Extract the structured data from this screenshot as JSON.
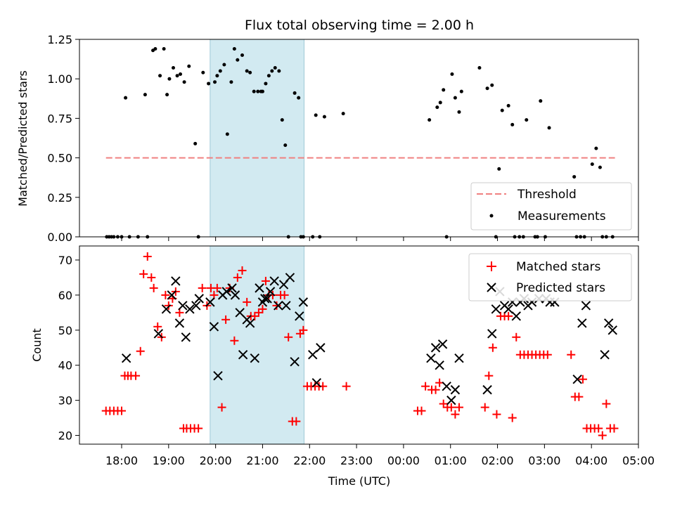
{
  "chart_data": [
    {
      "type": "scatter",
      "title": "Flux total observing time = 2.00 h",
      "ylabel": "Matched/Predicted stars",
      "ylim": [
        0,
        1.25
      ],
      "yticks": [
        "0.00",
        "0.25",
        "0.50",
        "0.75",
        "1.00",
        "1.25"
      ],
      "shaded_span": [
        "19:53",
        "21:53"
      ],
      "threshold": {
        "name": "Threshold",
        "value": 0.5,
        "x": [
          "17:40",
          "04:30"
        ],
        "color": "#f08080"
      },
      "legend": {
        "position": "lower-right",
        "entries": [
          "Threshold",
          "Measurements"
        ]
      },
      "series": [
        {
          "name": "Measurements",
          "color": "#000000",
          "marker": "dot",
          "x": [
            "17:41",
            "17:44",
            "17:47",
            "17:50",
            "17:55",
            "18:00",
            "18:05",
            "18:10",
            "18:21",
            "18:30",
            "18:33",
            "18:40",
            "18:43",
            "18:49",
            "18:54",
            "18:58",
            "19:01",
            "19:06",
            "19:11",
            "19:15",
            "19:20",
            "19:26",
            "19:34",
            "19:38",
            "19:44",
            "19:51",
            "19:59",
            "20:02",
            "20:06",
            "20:11",
            "20:15",
            "20:20",
            "20:24",
            "20:28",
            "20:34",
            "20:40",
            "20:44",
            "20:49",
            "20:54",
            "20:58",
            "21:00",
            "21:04",
            "21:08",
            "21:12",
            "21:16",
            "21:21",
            "21:25",
            "21:29",
            "21:33",
            "21:41",
            "21:46",
            "21:49",
            "21:52",
            "22:04",
            "22:08",
            "22:13",
            "22:19",
            "22:43",
            "00:33",
            "00:43",
            "00:47",
            "00:51",
            "00:55",
            "01:02",
            "01:06",
            "01:11",
            "01:14",
            "01:37",
            "01:47",
            "01:53",
            "01:58",
            "02:02",
            "02:06",
            "02:14",
            "02:19",
            "02:22",
            "02:28",
            "02:33",
            "02:37",
            "02:48",
            "02:51",
            "02:55",
            "03:01",
            "03:06",
            "03:38",
            "03:41",
            "03:46",
            "03:51",
            "04:01",
            "04:06",
            "04:11",
            "04:14",
            "04:19",
            "04:27"
          ],
          "y": [
            0,
            0,
            0,
            0,
            0,
            0,
            0.88,
            0,
            0,
            0.9,
            0,
            1.18,
            1.19,
            1.02,
            1.19,
            0.9,
            1.0,
            1.07,
            1.02,
            1.03,
            0.98,
            1.08,
            0.59,
            0,
            1.04,
            0.97,
            0.98,
            1.02,
            1.05,
            1.09,
            0.65,
            0.98,
            1.19,
            1.12,
            1.15,
            1.05,
            1.04,
            0.92,
            0.92,
            0.92,
            0.92,
            0.97,
            1.02,
            1.05,
            1.07,
            1.05,
            0.74,
            0.58,
            0,
            0.91,
            0.88,
            0,
            0,
            0,
            0.77,
            0,
            0.76,
            0.78,
            0.74,
            0.82,
            0.85,
            0.93,
            0,
            1.03,
            0.88,
            0.79,
            0.92,
            1.07,
            0.94,
            0.96,
            0,
            0.43,
            0.8,
            0.83,
            0.71,
            0,
            0,
            0,
            0.74,
            0,
            0,
            0.86,
            0,
            0.69,
            0.38,
            0,
            0,
            0,
            0.46,
            0.56,
            0.44,
            0,
            0,
            0
          ],
          "_note_x": "times in UTC HH:MM"
        }
      ]
    },
    {
      "type": "scatter",
      "ylabel": "Count",
      "xlabel": "Time (UTC)",
      "ylim": [
        17.5,
        74
      ],
      "yticks": [
        "20",
        "30",
        "40",
        "50",
        "60",
        "70"
      ],
      "xticks": [
        "18:00",
        "19:00",
        "20:00",
        "21:00",
        "22:00",
        "23:00",
        "00:00",
        "01:00",
        "02:00",
        "03:00",
        "04:00",
        "05:00"
      ],
      "shaded_span": [
        "19:53",
        "21:53"
      ],
      "legend": {
        "position": "top-right",
        "entries": [
          "Matched stars",
          "Predicted stars"
        ]
      },
      "series": [
        {
          "name": "Matched stars",
          "color": "#ff0000",
          "marker": "plus",
          "x": [
            "17:40",
            "17:45",
            "17:50",
            "17:55",
            "18:00",
            "18:04",
            "18:08",
            "18:12",
            "18:18",
            "18:24",
            "18:28",
            "18:33",
            "18:38",
            "18:41",
            "18:46",
            "18:51",
            "18:56",
            "19:00",
            "19:05",
            "19:09",
            "19:14",
            "19:19",
            "19:23",
            "19:28",
            "19:33",
            "19:38",
            "19:43",
            "19:49",
            "19:54",
            "19:58",
            "20:02",
            "20:08",
            "20:13",
            "20:18",
            "20:24",
            "20:28",
            "20:34",
            "20:40",
            "20:45",
            "20:50",
            "20:55",
            "21:00",
            "21:04",
            "21:08",
            "21:13",
            "21:18",
            "21:23",
            "21:28",
            "21:33",
            "21:38",
            "21:43",
            "21:48",
            "21:52",
            "21:57",
            "22:02",
            "22:07",
            "22:12",
            "22:17",
            "22:47",
            "00:18",
            "00:23",
            "00:28",
            "00:36",
            "00:41",
            "00:46",
            "00:51",
            "00:56",
            "01:01",
            "01:06",
            "01:11",
            "01:44",
            "01:49",
            "01:54",
            "01:59",
            "02:04",
            "02:09",
            "02:14",
            "02:19",
            "02:24",
            "02:29",
            "02:34",
            "02:39",
            "02:44",
            "02:49",
            "02:54",
            "02:59",
            "03:04",
            "03:34",
            "03:39",
            "03:44",
            "03:49",
            "03:54",
            "03:59",
            "04:04",
            "04:09",
            "04:14",
            "04:19",
            "04:24",
            "04:29"
          ],
          "y": [
            27,
            27,
            27,
            27,
            27,
            37,
            37,
            37,
            37,
            44,
            66,
            71,
            65,
            62,
            51,
            48,
            60,
            57,
            59,
            61,
            55,
            22,
            22,
            22,
            22,
            22,
            62,
            57,
            62,
            60,
            62,
            28,
            53,
            62,
            47,
            65,
            67,
            58,
            54,
            54,
            55,
            56,
            64,
            60,
            60,
            57,
            60,
            60,
            48,
            24,
            24,
            49,
            50,
            34,
            34,
            34,
            34,
            34,
            34,
            27,
            27,
            34,
            33,
            33,
            35,
            29,
            28,
            28,
            26,
            28,
            28,
            37,
            45,
            26,
            54,
            54,
            54,
            25,
            48,
            43,
            43,
            43,
            43,
            43,
            43,
            43,
            43,
            43,
            31,
            31,
            36,
            22,
            22,
            22,
            22,
            20,
            29,
            22,
            22
          ],
          "_note_x": "times in UTC HH:MM"
        },
        {
          "name": "Predicted stars",
          "color": "#000000",
          "marker": "x",
          "x": [
            "18:06",
            "18:47",
            "18:57",
            "19:04",
            "19:09",
            "19:14",
            "19:18",
            "19:22",
            "19:27",
            "19:35",
            "19:39",
            "19:53",
            "19:58",
            "20:03",
            "20:09",
            "20:14",
            "20:21",
            "20:25",
            "20:31",
            "20:35",
            "20:40",
            "20:44",
            "20:50",
            "20:56",
            "21:00",
            "21:03",
            "21:06",
            "21:10",
            "21:15",
            "21:20",
            "21:27",
            "21:30",
            "21:35",
            "21:41",
            "21:47",
            "21:52",
            "22:04",
            "22:09",
            "22:14",
            "00:35",
            "00:41",
            "00:46",
            "00:50",
            "00:55",
            "01:01",
            "01:06",
            "01:11",
            "01:47",
            "01:53",
            "01:58",
            "02:03",
            "02:09",
            "02:14",
            "02:19",
            "02:24",
            "02:29",
            "02:34",
            "02:39",
            "02:44",
            "02:53",
            "03:02",
            "03:07",
            "03:13",
            "03:42",
            "03:48",
            "03:53",
            "04:17",
            "04:22",
            "04:27"
          ],
          "y": [
            42,
            49,
            56,
            60,
            64,
            52,
            57,
            48,
            56,
            57,
            59,
            58,
            51,
            37,
            60,
            61,
            62,
            60,
            55,
            43,
            53,
            52,
            42,
            62,
            58,
            59,
            59,
            61,
            64,
            57,
            63,
            57,
            65,
            41,
            54,
            58,
            43,
            35,
            45,
            42,
            45,
            40,
            46,
            34,
            30,
            33,
            42,
            33,
            49,
            56,
            61,
            57,
            56,
            58,
            54,
            58,
            59,
            57,
            58,
            59,
            59,
            58,
            58,
            36,
            52,
            57,
            43,
            52,
            50
          ],
          "_note_x": "times in UTC HH:MM"
        }
      ]
    }
  ]
}
